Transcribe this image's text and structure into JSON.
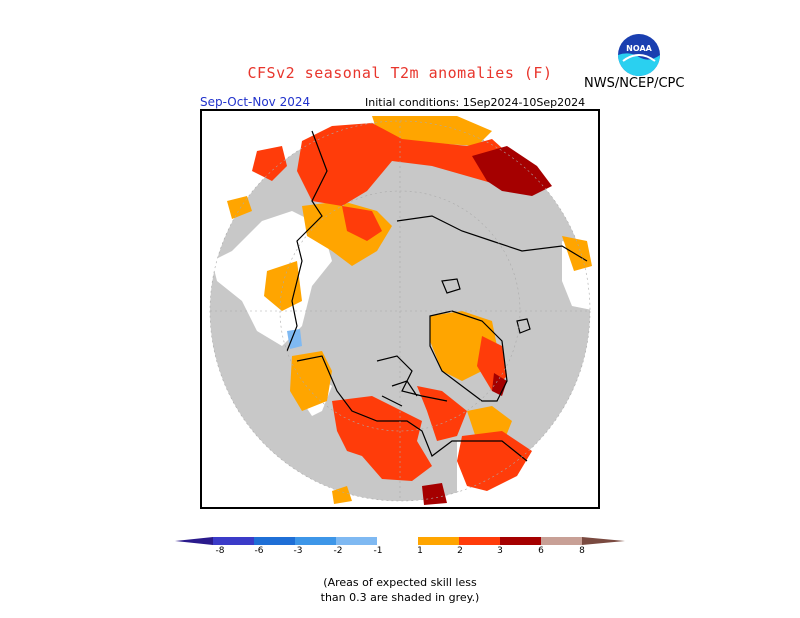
{
  "header": {
    "title": "CFSv2 seasonal T2m anomalies (F)",
    "agency": "NWS/NCEP/CPC",
    "logo_text": "NOAA",
    "season": "Sep-Oct-Nov 2024",
    "initial_conditions": "Initial conditions: 1Sep2024-10Sep2024"
  },
  "legend": {
    "labels": [
      "-8",
      "-6",
      "-3",
      "-2",
      "-1",
      "1",
      "2",
      "3",
      "6",
      "8"
    ],
    "colors": {
      "lt_m8": "#2a1a8c",
      "m8_m6": "#3b3bc8",
      "m6_m3": "#1f6fd6",
      "m3_m2": "#3d96e8",
      "m2_m1": "#7fb9f2",
      "m1_1": "#ffffff",
      "p1_2": "#ffa500",
      "p2_3": "#ff3c0a",
      "p3_6": "#a50000",
      "p6_8": "#c8a096",
      "gt_8": "#7a4a40"
    }
  },
  "notes": {
    "line1": "(Areas of expected skill less",
    "line2": "than 0.3 are shaded in grey.)"
  },
  "map": {
    "grey": "#c8c8c8"
  }
}
